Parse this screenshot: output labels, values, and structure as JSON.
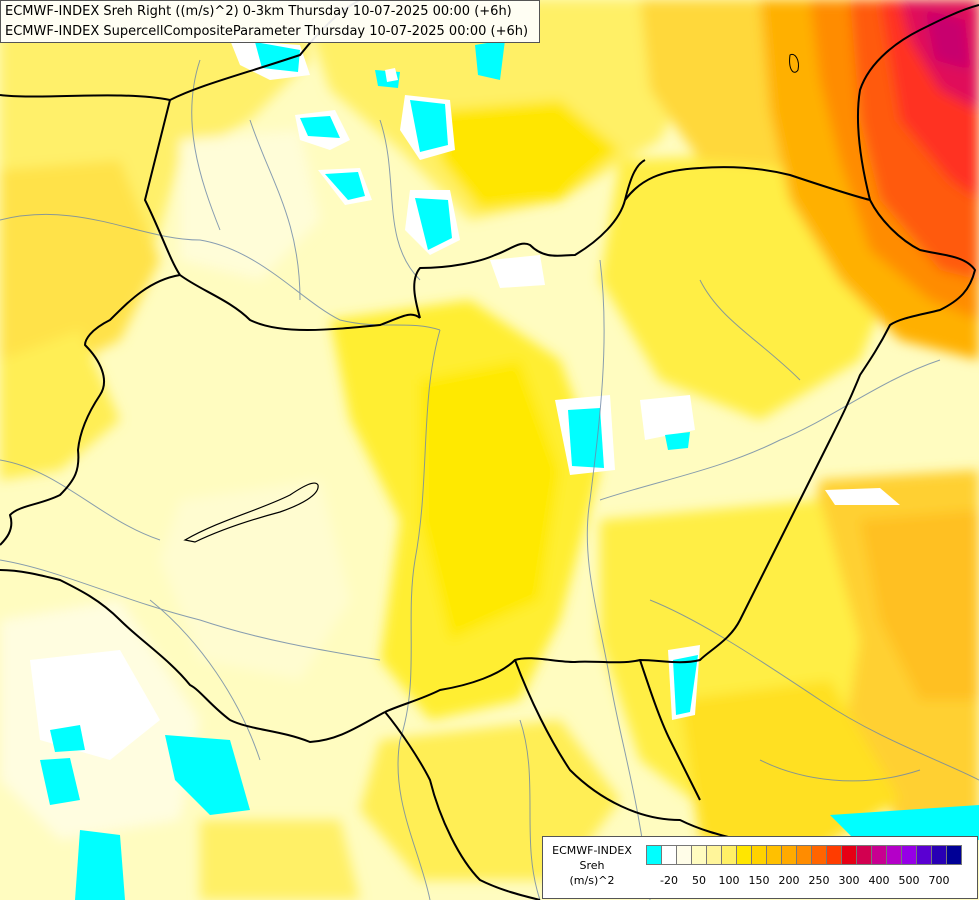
{
  "titles": [
    "ECMWF-INDEX Sreh Right ((m/s)^2) 0-3km Thursday 10-07-2025 00:00 (+6h)",
    "ECMWF-INDEX SupercellCompositeParameter Thursday 10-07-2025 00:00 (+6h)"
  ],
  "legend": {
    "line1": "ECMWF-INDEX",
    "line2": "Sreh",
    "line3": "(m/s)^2",
    "colors": [
      "#00ffff",
      "#ffffff",
      "#fffde8",
      "#fffcc0",
      "#fff59a",
      "#fff066",
      "#ffe600",
      "#ffd200",
      "#ffc000",
      "#ffaa00",
      "#ff8c00",
      "#ff6400",
      "#ff3c00",
      "#e60014",
      "#d20050",
      "#c80090",
      "#b400c8",
      "#9600e6",
      "#5a00d2",
      "#2800b4",
      "#000096"
    ],
    "ticks": [
      {
        "label": "-20",
        "index": 1
      },
      {
        "label": "50",
        "index": 3
      },
      {
        "label": "100",
        "index": 5
      },
      {
        "label": "150",
        "index": 7
      },
      {
        "label": "200",
        "index": 9
      },
      {
        "label": "250",
        "index": 11
      },
      {
        "label": "300",
        "index": 13
      },
      {
        "label": "400",
        "index": 15
      },
      {
        "label": "500",
        "index": 17
      },
      {
        "label": "700",
        "index": 19
      }
    ]
  }
}
